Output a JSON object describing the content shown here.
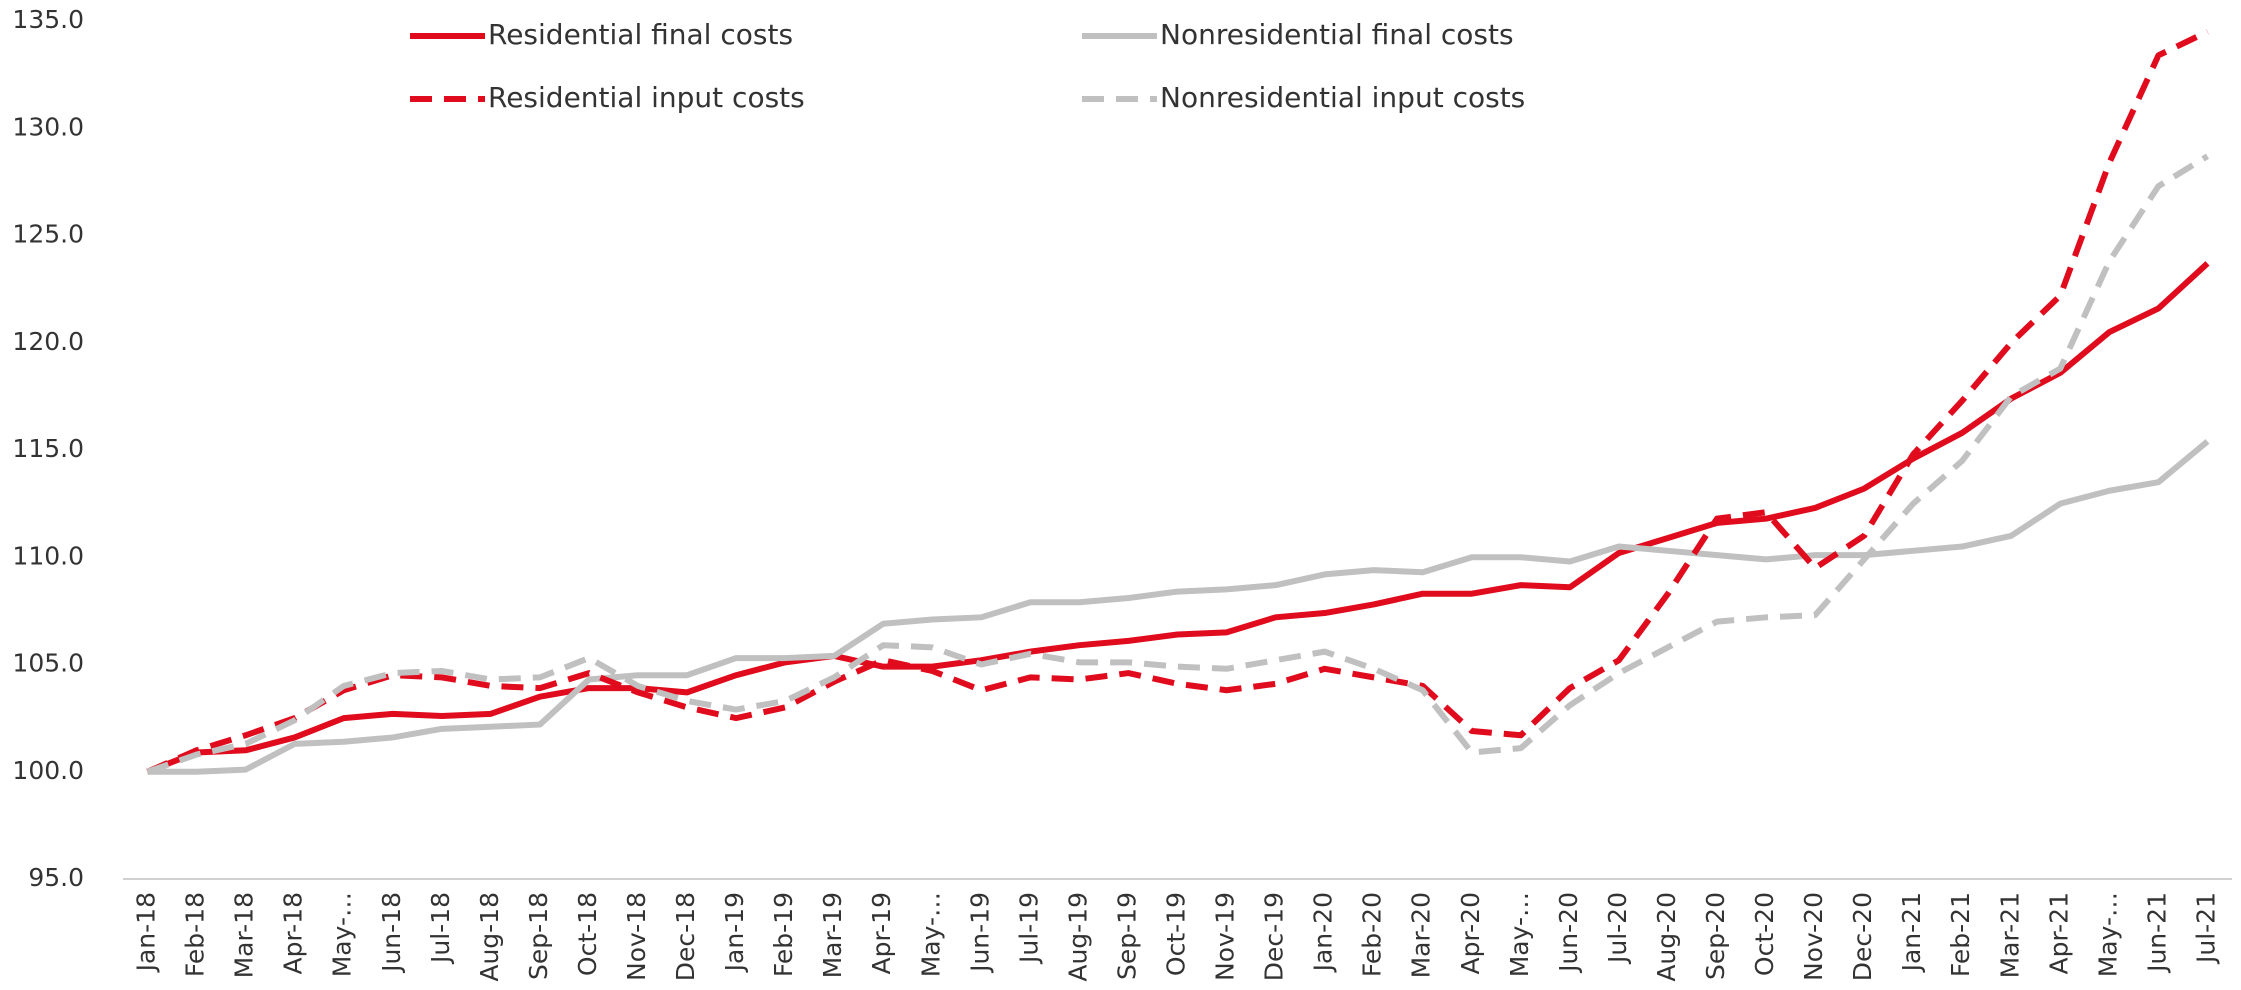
{
  "chart_data": {
    "type": "line",
    "categories": [
      "Jan-18",
      "Feb-18",
      "Mar-18",
      "Apr-18",
      "May-…",
      "Jun-18",
      "Jul-18",
      "Aug-18",
      "Sep-18",
      "Oct-18",
      "Nov-18",
      "Dec-18",
      "Jan-19",
      "Feb-19",
      "Mar-19",
      "Apr-19",
      "May-…",
      "Jun-19",
      "Jul-19",
      "Aug-19",
      "Sep-19",
      "Oct-19",
      "Nov-19",
      "Dec-19",
      "Jan-20",
      "Feb-20",
      "Mar-20",
      "Apr-20",
      "May-…",
      "Jun-20",
      "Jul-20",
      "Aug-20",
      "Sep-20",
      "Oct-20",
      "Nov-20",
      "Dec-20",
      "Jan-21",
      "Feb-21",
      "Mar-21",
      "Apr-21",
      "May-…",
      "Jun-21",
      "Jul-21"
    ],
    "series": [
      {
        "name": "Residential final costs",
        "color": "#e00b1c",
        "dash": false,
        "values": [
          100,
          100.9,
          101.0,
          101.6,
          102.5,
          102.7,
          102.6,
          102.7,
          103.5,
          103.9,
          103.9,
          103.7,
          104.5,
          105.1,
          105.4,
          104.9,
          104.9,
          105.2,
          105.6,
          105.9,
          106.1,
          106.4,
          106.5,
          107.2,
          107.4,
          107.8,
          108.3,
          108.3,
          108.7,
          108.6,
          110.2,
          110.9,
          111.6,
          111.8,
          112.3,
          113.2,
          114.6,
          115.8,
          117.4,
          118.6,
          120.5,
          121.6,
          123.7
        ]
      },
      {
        "name": "Nonresidential final costs",
        "color": "#c0c0c0",
        "dash": false,
        "values": [
          100,
          100,
          100.1,
          101.3,
          101.4,
          101.6,
          102.0,
          102.1,
          102.2,
          104.3,
          104.5,
          104.5,
          105.3,
          105.3,
          105.4,
          106.9,
          107.1,
          107.2,
          107.9,
          107.9,
          108.1,
          108.4,
          108.5,
          108.7,
          109.2,
          109.4,
          109.3,
          110.0,
          110.0,
          109.8,
          110.5,
          110.3,
          110.1,
          109.9,
          110.1,
          110.1,
          110.3,
          110.5,
          111.0,
          112.5,
          113.1,
          113.5,
          115.4
        ]
      },
      {
        "name": "Residential input costs",
        "color": "#e00b1c",
        "dash": true,
        "values": [
          100,
          101.0,
          101.7,
          102.5,
          103.8,
          104.5,
          104.4,
          104.0,
          103.9,
          104.6,
          103.7,
          103.0,
          102.5,
          103.0,
          104.2,
          105.2,
          104.7,
          103.8,
          104.4,
          104.3,
          104.6,
          104.1,
          103.8,
          104.1,
          104.8,
          104.4,
          104.0,
          101.9,
          101.7,
          103.9,
          105.2,
          108.3,
          111.8,
          112.1,
          109.5,
          111.0,
          114.8,
          117.3,
          120.0,
          122.2,
          128.4,
          133.4,
          134.5
        ]
      },
      {
        "name": "Nonresidential input costs",
        "color": "#c0c0c0",
        "dash": true,
        "values": [
          100,
          100.8,
          101.3,
          102.4,
          104.0,
          104.6,
          104.7,
          104.3,
          104.4,
          105.3,
          104.0,
          103.3,
          102.9,
          103.3,
          104.4,
          105.9,
          105.8,
          105.0,
          105.5,
          105.1,
          105.1,
          104.9,
          104.8,
          105.2,
          105.6,
          104.8,
          103.8,
          100.9,
          101.1,
          103.1,
          104.6,
          105.8,
          107.0,
          107.2,
          107.3,
          109.9,
          112.5,
          114.5,
          117.5,
          118.8,
          123.8,
          127.3,
          128.7
        ]
      }
    ],
    "ylim": [
      95,
      135
    ],
    "yticks": [
      {
        "value": 95,
        "label": "95.0"
      },
      {
        "value": 100,
        "label": "100.0"
      },
      {
        "value": 105,
        "label": "105.0"
      },
      {
        "value": 110,
        "label": "110.0"
      },
      {
        "value": 115,
        "label": "115.0"
      },
      {
        "value": 120,
        "label": "120.0"
      },
      {
        "value": 125,
        "label": "125.0"
      },
      {
        "value": 130,
        "label": "130.0"
      },
      {
        "value": 135,
        "label": "135.0"
      }
    ],
    "grid": false,
    "legend": "top"
  }
}
